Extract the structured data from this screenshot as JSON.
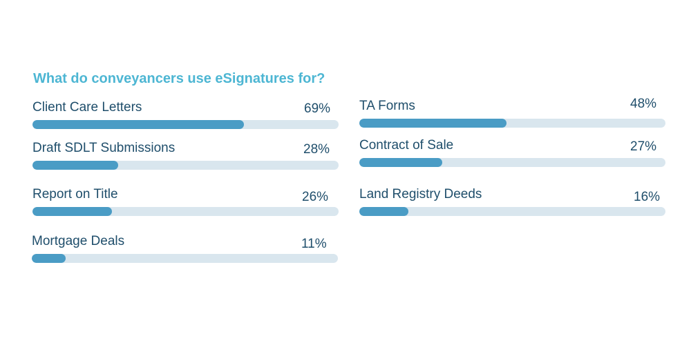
{
  "chart_data": {
    "type": "bar",
    "orientation": "horizontal",
    "title": "What do conveyancers use eSignatures for?",
    "unit": "%",
    "colors": {
      "title": "#4db6d3",
      "text": "#1f4e6b",
      "bar_fill": "#4a9cc5",
      "bar_track": "#d9e6ee"
    },
    "items": [
      {
        "label": "Client Care Letters",
        "value": 69,
        "value_label": "69%"
      },
      {
        "label": "Draft SDLT Submissions",
        "value": 28,
        "value_label": "28%"
      },
      {
        "label": "Report on Title",
        "value": 26,
        "value_label": "26%"
      },
      {
        "label": "Mortgage Deals",
        "value": 11,
        "value_label": "11%"
      },
      {
        "label": "TA Forms",
        "value": 48,
        "value_label": "48%"
      },
      {
        "label": "Contract of Sale",
        "value": 27,
        "value_label": "27%"
      },
      {
        "label": "Land Registry Deeds",
        "value": 16,
        "value_label": "16%"
      }
    ]
  }
}
